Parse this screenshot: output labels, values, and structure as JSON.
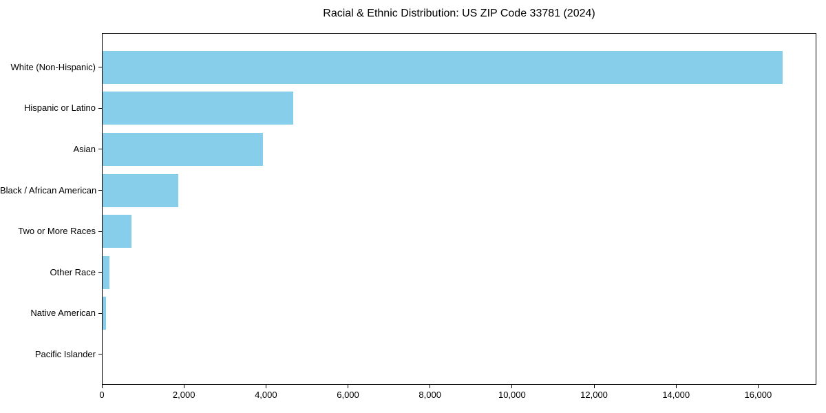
{
  "figure": {
    "background": "#ffffff",
    "text_color": "#000000"
  },
  "chart_data": {
    "type": "bar",
    "orientation": "horizontal",
    "title": "Racial & Ethnic Distribution: US ZIP Code 33781 (2024)",
    "categories": [
      "White (Non-Hispanic)",
      "Hispanic or Latino",
      "Asian",
      "Black / African American",
      "Two or More Races",
      "Other Race",
      "Native American",
      "Pacific Islander"
    ],
    "values": [
      16590,
      4670,
      3930,
      1860,
      720,
      180,
      100,
      0
    ],
    "bar_color": "#87CEEB",
    "xlabel": "",
    "ylabel": "",
    "xlim": [
      0,
      17420
    ],
    "x_ticks": [
      0,
      2000,
      4000,
      6000,
      8000,
      10000,
      12000,
      14000,
      16000
    ],
    "x_tick_labels": [
      "0",
      "2,000",
      "4,000",
      "6,000",
      "8,000",
      "10,000",
      "12,000",
      "14,000",
      "16,000"
    ],
    "grid": false,
    "legend_position": "none"
  }
}
